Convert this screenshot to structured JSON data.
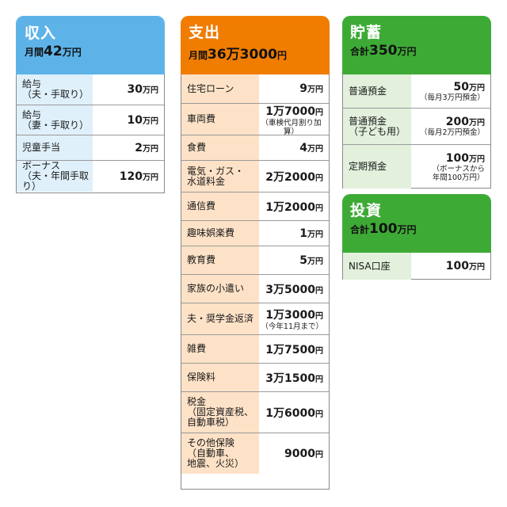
{
  "income": {
    "title": "収入",
    "sub_prefix": "月間",
    "sub_num": "42",
    "sub_unit": "万円",
    "rows": [
      {
        "label": "給与\n（夫・手取り）",
        "num": "30",
        "unit": "万円",
        "note": ""
      },
      {
        "label": "給与\n（妻・手取り）",
        "num": "10",
        "unit": "万円",
        "note": ""
      },
      {
        "label": "児童手当",
        "num": "2",
        "unit": "万円",
        "note": ""
      },
      {
        "label": "ボーナス\n（夫・年間手取り）",
        "num": "120",
        "unit": "万円",
        "note": ""
      }
    ]
  },
  "expense": {
    "title": "支出",
    "sub_prefix": "月間",
    "sub_num": "36万3000",
    "sub_unit": "円",
    "rows": [
      {
        "label": "住宅ローン",
        "num": "9",
        "unit": "万円",
        "note": ""
      },
      {
        "label": "車両費",
        "num": "1万7000",
        "unit": "円",
        "note": "（車検代月割り加算）"
      },
      {
        "label": "食費",
        "num": "4",
        "unit": "万円",
        "note": ""
      },
      {
        "label": "電気・ガス・\n水道料金",
        "num": "2万2000",
        "unit": "円",
        "note": ""
      },
      {
        "label": "通信費",
        "num": "1万2000",
        "unit": "円",
        "note": ""
      },
      {
        "label": "趣味娯楽費",
        "num": "1",
        "unit": "万円",
        "note": ""
      },
      {
        "label": "教育費",
        "num": "5",
        "unit": "万円",
        "note": ""
      },
      {
        "label": "家族の小遣い",
        "num": "3万5000",
        "unit": "円",
        "note": ""
      },
      {
        "label": "夫・奨学金返済",
        "num": "1万3000",
        "unit": "円",
        "note": "（今年11月まで）"
      },
      {
        "label": "雑費",
        "num": "1万7500",
        "unit": "円",
        "note": ""
      },
      {
        "label": "保険料",
        "num": "3万1500",
        "unit": "円",
        "note": ""
      },
      {
        "label": "税金\n（固定資産税、\n自動車税）",
        "num": "1万6000",
        "unit": "円",
        "note": ""
      },
      {
        "label": "その他保険\n（自動車、\n地震、火災）",
        "num": "9000",
        "unit": "円",
        "note": ""
      }
    ]
  },
  "savings": {
    "title": "貯蓄",
    "sub_prefix": "合計",
    "sub_num": "350",
    "sub_unit": "万円",
    "rows": [
      {
        "label": "普通預金",
        "num": "50",
        "unit": "万円",
        "note": "（毎月3万円預金）"
      },
      {
        "label": "普通預金\n（子ども用）",
        "num": "200",
        "unit": "万円",
        "note": "（毎月2万円預金）"
      },
      {
        "label": "定期預金",
        "num": "100",
        "unit": "万円",
        "note": "（ボーナスから\n年間100万円）"
      }
    ]
  },
  "invest": {
    "title": "投資",
    "sub_prefix": "合計",
    "sub_num": "100",
    "sub_unit": "万円",
    "rows": [
      {
        "label": "NISA口座",
        "num": "100",
        "unit": "万円",
        "note": ""
      }
    ]
  },
  "colors": {
    "income": "#5db3e8",
    "expense": "#f07c00",
    "savings": "#3eaa36"
  }
}
